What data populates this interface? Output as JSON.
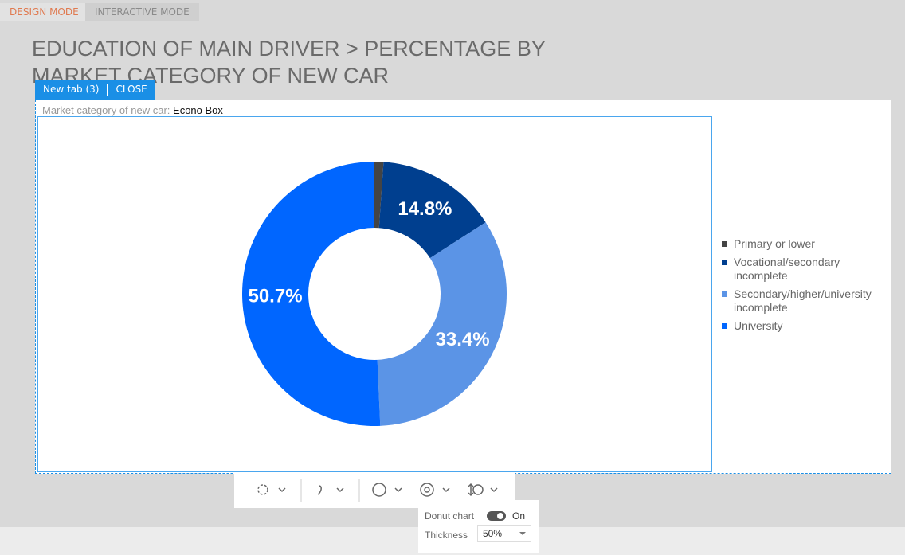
{
  "tabs": [
    "DESIGN MODE",
    "INTERACTIVE MODE"
  ],
  "page_title": "EDUCATION OF MAIN DRIVER > PERCENTAGE BY MARKET CATEGORY OF NEW CAR",
  "widget_tab": {
    "name": "New tab (3)",
    "close": "CLOSE"
  },
  "filter": {
    "label": "Market category of new car:",
    "value": "Econo Box"
  },
  "chart_data": {
    "type": "donut",
    "categories": [
      "Primary or lower",
      "Vocational/secondary incomplete",
      "Secondary/higher/university incomplete",
      "University"
    ],
    "values": [
      1.1,
      14.8,
      33.4,
      50.7
    ],
    "value_labels": [
      null,
      "14.8%",
      "33.4%",
      "50.7%"
    ],
    "colors": [
      "#444444",
      "#003f8f",
      "#5b94e6",
      "#0066ff"
    ],
    "legend": "right"
  },
  "popup": {
    "donut_label": "Donut chart",
    "donut_state": "On",
    "thickness_label": "Thickness",
    "thickness_value": "50%"
  }
}
